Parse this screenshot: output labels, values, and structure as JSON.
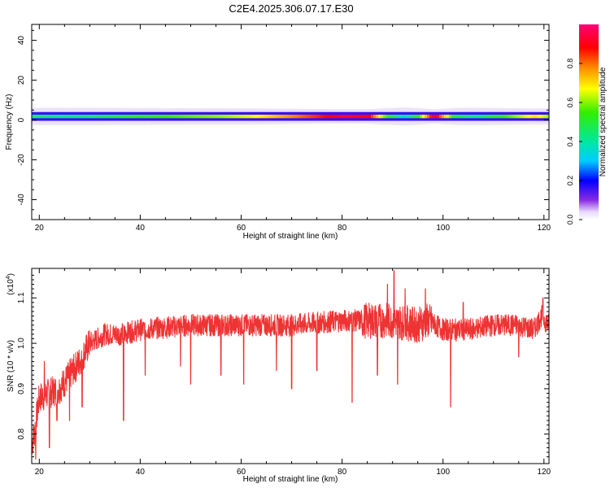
{
  "title": "C2E4.2025.306.07.17.E30",
  "chart_data": [
    {
      "type": "heatmap",
      "xlabel": "Height of straight line (km)",
      "ylabel": "Frequency (Hz)",
      "xlim": [
        18.5,
        121
      ],
      "ylim": [
        -50,
        48
      ],
      "xticks": [
        20,
        40,
        60,
        80,
        100,
        120
      ],
      "yticks": [
        -40,
        -20,
        0,
        20,
        40
      ],
      "colorbar": {
        "label": "Normalized spectral amplitude",
        "range": [
          0,
          1
        ],
        "ticks": [
          "0.0",
          "0.2",
          "0.4",
          "0.6",
          "0.8"
        ]
      },
      "band": {
        "center_frequency_hz": 1.8,
        "core_half_width_hz": 1.6,
        "halo_half_width_hz": 3.5,
        "amplitude_profile": {
          "x": [
            18.5,
            24,
            30,
            35,
            45,
            55,
            62,
            70,
            80,
            85,
            88,
            92,
            95,
            98,
            102,
            106,
            112,
            118,
            121
          ],
          "amplitude": [
            0.45,
            0.42,
            0.44,
            0.48,
            0.55,
            0.6,
            0.66,
            0.78,
            0.93,
            0.9,
            0.6,
            0.35,
            0.55,
            0.95,
            0.5,
            0.42,
            0.55,
            0.7,
            0.6
          ]
        }
      }
    },
    {
      "type": "line",
      "xlabel": "Height of straight line (km)",
      "ylabel": "SNR (10 * v/v)",
      "scale_label": "(x10",
      "scale_exponent": "4",
      "xlim": [
        18.5,
        121
      ],
      "ylim": [
        0.735,
        1.165
      ],
      "xticks": [
        20,
        40,
        60,
        80,
        100,
        120
      ],
      "yticks": [
        "0.8",
        "0.9",
        "1.0",
        "1.1"
      ],
      "series": [
        {
          "color": "#ee3333",
          "trend": {
            "x": [
              18.5,
              19,
              20,
              22,
              24,
              26,
              28,
              30,
              33,
              36,
              40,
              50,
              60,
              70,
              80,
              85,
              90,
              95,
              97,
              100,
              105,
              110,
              115,
              118,
              119.5,
              121
            ],
            "y": [
              0.78,
              0.8,
              0.88,
              0.89,
              0.9,
              0.93,
              0.96,
              1.0,
              1.02,
              1.02,
              1.03,
              1.04,
              1.04,
              1.04,
              1.05,
              1.05,
              1.05,
              1.04,
              1.05,
              1.03,
              1.03,
              1.04,
              1.04,
              1.03,
              1.06,
              1.04
            ]
          },
          "spikes": [
            {
              "x": 19.3,
              "y": 0.745
            },
            {
              "x": 21,
              "y": 0.96
            },
            {
              "x": 22,
              "y": 0.77
            },
            {
              "x": 23.5,
              "y": 0.83
            },
            {
              "x": 26,
              "y": 0.83
            },
            {
              "x": 28.5,
              "y": 0.86
            },
            {
              "x": 36.7,
              "y": 0.83
            },
            {
              "x": 41,
              "y": 0.93
            },
            {
              "x": 48,
              "y": 0.95
            },
            {
              "x": 50,
              "y": 0.91
            },
            {
              "x": 56,
              "y": 0.93
            },
            {
              "x": 60.5,
              "y": 0.91
            },
            {
              "x": 67,
              "y": 0.94
            },
            {
              "x": 70,
              "y": 0.9
            },
            {
              "x": 75,
              "y": 0.94
            },
            {
              "x": 82,
              "y": 0.87
            },
            {
              "x": 87,
              "y": 0.93
            },
            {
              "x": 89,
              "y": 1.13
            },
            {
              "x": 90.3,
              "y": 1.16
            },
            {
              "x": 91,
              "y": 0.91
            },
            {
              "x": 92.5,
              "y": 1.12
            },
            {
              "x": 96.5,
              "y": 1.12
            },
            {
              "x": 101.5,
              "y": 0.86
            },
            {
              "x": 104,
              "y": 1.09
            },
            {
              "x": 115,
              "y": 0.97
            },
            {
              "x": 119.8,
              "y": 1.1
            }
          ]
        }
      ]
    }
  ]
}
